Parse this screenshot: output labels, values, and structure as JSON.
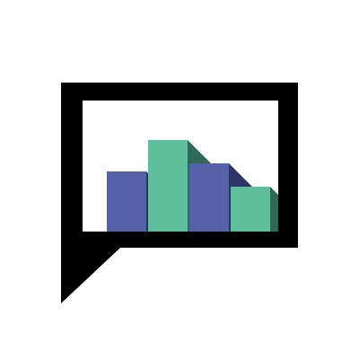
{
  "icon": {
    "name": "chat-bubble-bar-chart-icon",
    "description_colors": {
      "frame": "#000000",
      "background": "#ffffff",
      "bar_blue": "#5561a8",
      "bar_blue_shadow": "#2d3568",
      "bar_green": "#5fbf9c",
      "bar_green_shadow": "#2f6a58"
    },
    "bars": [
      {
        "color": "blue",
        "level": 0.46
      },
      {
        "color": "green",
        "level": 0.7
      },
      {
        "color": "blue",
        "level": 0.52
      },
      {
        "color": "green",
        "level": 0.34
      }
    ]
  }
}
